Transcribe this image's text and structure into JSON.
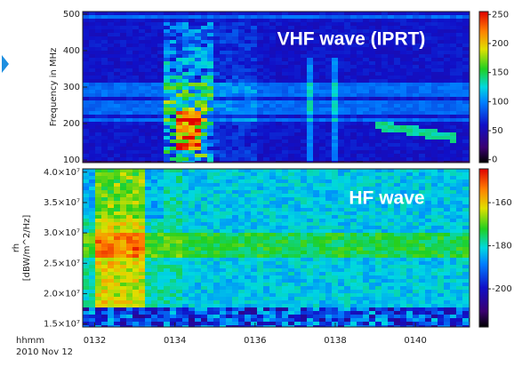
{
  "chart_data": [
    {
      "type": "spectrogram",
      "annotation": "VHF wave (IPRT)",
      "ylabel": "Frequency in MHz",
      "xlim": [
        131.7,
        141.35
      ],
      "ylim": [
        93,
        507
      ],
      "yticks": [
        100,
        200,
        300,
        400,
        500
      ],
      "colorbar_lim": [
        -5,
        255
      ],
      "colorbar_ticks": [
        0,
        50,
        100,
        150,
        200,
        250
      ]
    },
    {
      "type": "spectrogram",
      "annotation": "HF wave",
      "ylabel": [
        "rh",
        "[dBW/m^2/Hz]"
      ],
      "xlabel": "hhmm",
      "date": "2010 Nov 12",
      "xlim": [
        131.7,
        141.35
      ],
      "xticks": [
        {
          "value": 132,
          "label": "0132"
        },
        {
          "value": 134,
          "label": "0134"
        },
        {
          "value": 136,
          "label": "0136"
        },
        {
          "value": 138,
          "label": "0138"
        },
        {
          "value": 140,
          "label": "0140"
        }
      ],
      "ylim": [
        14500000,
        40550000
      ],
      "yticks": [
        {
          "value": 15000000,
          "label": "1.5×10⁷"
        },
        {
          "value": 20000000,
          "label": "2.0×10⁷"
        },
        {
          "value": 25000000,
          "label": "2.5×10⁷"
        },
        {
          "value": 30000000,
          "label": "3.0×10⁷"
        },
        {
          "value": 35000000,
          "label": "3.5×10⁷"
        },
        {
          "value": 40000000,
          "label": "4.0×10⁷"
        }
      ],
      "colorbar_lim": [
        -217.7,
        -144.3
      ],
      "colorbar_ticks": [
        -200,
        -180,
        -160
      ]
    }
  ]
}
